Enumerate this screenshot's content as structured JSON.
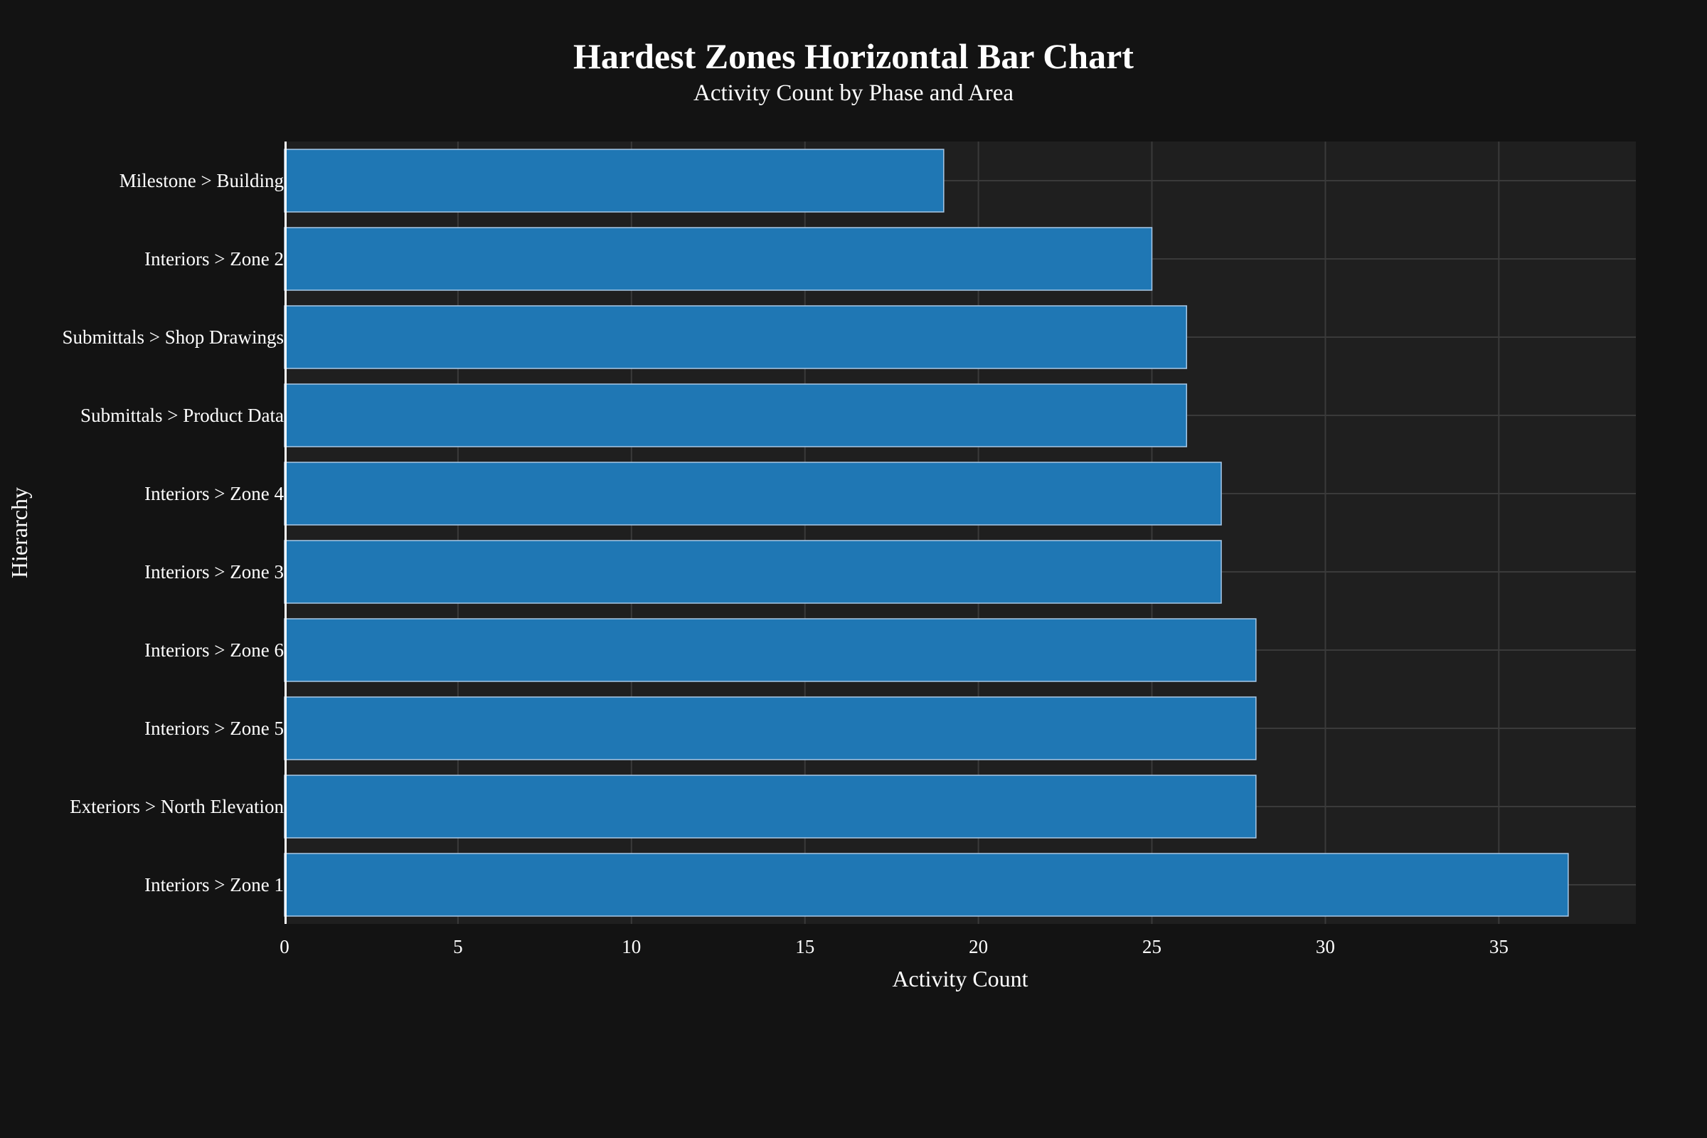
{
  "chart_data": {
    "type": "bar",
    "orientation": "horizontal",
    "title": "Hardest Zones Horizontal Bar Chart",
    "subtitle": "Activity Count by Phase and Area",
    "xlabel": "Activity Count",
    "ylabel": "Hierarchy",
    "categories": [
      "Milestone > Building",
      "Interiors > Zone 2",
      "Submittals > Shop Drawings",
      "Submittals > Product Data",
      "Interiors > Zone 4",
      "Interiors > Zone 3",
      "Interiors > Zone 6",
      "Interiors > Zone 5",
      "Exteriors > North Elevation",
      "Interiors > Zone 1"
    ],
    "values": [
      19,
      25,
      26,
      26,
      27,
      27,
      28,
      28,
      28,
      37
    ],
    "xlim": [
      0,
      38.95
    ],
    "xticks": [
      "0",
      "5",
      "10",
      "15",
      "20",
      "25",
      "30",
      "35"
    ],
    "xtick_values": [
      0,
      5,
      10,
      15,
      20,
      25,
      30,
      35
    ],
    "grid": true,
    "legend": "none",
    "colors": {
      "background": "#131313",
      "plot_background": "#1f1f1f",
      "bar": "#1f77b4",
      "bar_outline": "#a9c8e6",
      "grid": "#3a3a3a",
      "text": "#ffffff"
    }
  }
}
